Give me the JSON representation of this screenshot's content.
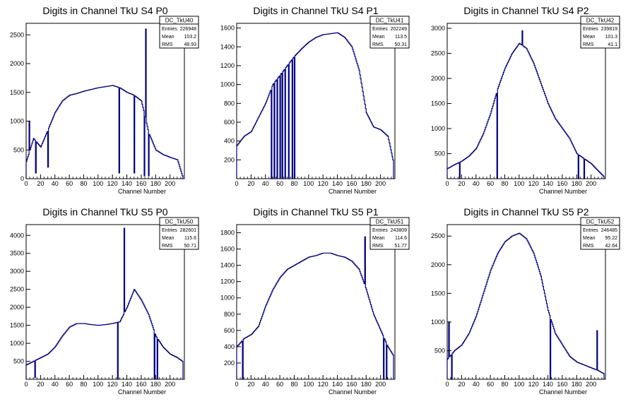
{
  "chart_data": [
    {
      "type": "histogram",
      "title": "Digits in Channel TkU S4 P0",
      "xlabel": "Channel Number",
      "xlim": [
        0,
        220
      ],
      "ylim": [
        0,
        2700
      ],
      "xticks": [
        0,
        20,
        40,
        60,
        80,
        100,
        120,
        140,
        160,
        180,
        200
      ],
      "yticks": [
        0,
        500,
        1000,
        1500,
        2000,
        2500
      ],
      "stats": {
        "name": "DC_TkU40",
        "entries_label": "Entries",
        "entries": "226948",
        "mean_label": "Mean",
        "mean": "103.2",
        "rms_label": "RMS",
        "rms": "48.93"
      },
      "x": [
        0,
        10,
        20,
        30,
        40,
        50,
        60,
        70,
        80,
        90,
        100,
        110,
        120,
        130,
        140,
        150,
        160,
        170,
        180,
        190,
        200,
        210,
        217
      ],
      "values": [
        300,
        700,
        550,
        850,
        1150,
        1350,
        1450,
        1480,
        1520,
        1550,
        1580,
        1600,
        1620,
        1580,
        1500,
        1450,
        1350,
        800,
        500,
        420,
        370,
        330,
        50
      ],
      "spikes": [
        [
          4,
          1000
        ],
        [
          13,
          100
        ],
        [
          30,
          200
        ],
        [
          129,
          100
        ],
        [
          150,
          100
        ],
        [
          164,
          50
        ],
        [
          166,
          2600
        ],
        [
          170,
          50
        ]
      ],
      "color": "#000080"
    },
    {
      "type": "histogram",
      "title": "Digits in Channel TkU S4 P1",
      "xlabel": "Channel Number",
      "xlim": [
        0,
        220
      ],
      "ylim": [
        0,
        1650
      ],
      "xticks": [
        0,
        20,
        40,
        60,
        80,
        100,
        120,
        140,
        160,
        180,
        200
      ],
      "yticks": [
        200,
        400,
        600,
        800,
        1000,
        1200,
        1400,
        1600
      ],
      "stats": {
        "name": "DC_TkU41",
        "entries_label": "Entries",
        "entries": "202249",
        "mean_label": "Mean",
        "mean": "113.5",
        "rms_label": "RMS",
        "rms": "50.31"
      },
      "x": [
        0,
        10,
        20,
        30,
        40,
        50,
        60,
        70,
        80,
        90,
        100,
        110,
        120,
        130,
        140,
        150,
        160,
        170,
        180,
        190,
        200,
        210,
        217
      ],
      "values": [
        350,
        450,
        500,
        650,
        800,
        1000,
        1100,
        1200,
        1300,
        1380,
        1450,
        1500,
        1530,
        1540,
        1550,
        1500,
        1400,
        1150,
        700,
        550,
        520,
        450,
        200
      ],
      "spikes": [
        [
          48,
          0
        ],
        [
          52,
          0
        ],
        [
          56,
          0
        ],
        [
          60,
          0
        ],
        [
          63,
          0
        ],
        [
          67,
          0
        ],
        [
          72,
          0
        ],
        [
          77,
          0
        ],
        [
          80,
          0
        ]
      ],
      "color": "#000080"
    },
    {
      "type": "histogram",
      "title": "Digits in Channel TkU S4 P2",
      "xlabel": "Channel Number",
      "xlim": [
        0,
        220
      ],
      "ylim": [
        0,
        3100
      ],
      "xticks": [
        0,
        20,
        40,
        60,
        80,
        100,
        120,
        140,
        160,
        180,
        200
      ],
      "yticks": [
        500,
        1000,
        1500,
        2000,
        2500,
        3000
      ],
      "stats": {
        "name": "DC_TkU42",
        "entries_label": "Entries",
        "entries": "239819",
        "mean_label": "Mean",
        "mean": "101.3",
        "rms_label": "RMS",
        "rms": "41.1"
      },
      "x": [
        0,
        10,
        20,
        30,
        40,
        50,
        60,
        70,
        80,
        90,
        100,
        110,
        120,
        130,
        140,
        150,
        160,
        170,
        180,
        190,
        200,
        210,
        217
      ],
      "values": [
        200,
        280,
        350,
        450,
        600,
        900,
        1300,
        1800,
        2200,
        2500,
        2700,
        2600,
        2300,
        1900,
        1500,
        1200,
        1000,
        800,
        500,
        400,
        300,
        150,
        50
      ],
      "spikes": [
        [
          17,
          0
        ],
        [
          69,
          0
        ],
        [
          104,
          2950
        ],
        [
          182,
          0
        ],
        [
          190,
          0
        ]
      ],
      "color": "#000080"
    },
    {
      "type": "histogram",
      "title": "Digits in Channel TkU S5 P0",
      "xlabel": "Channel Number",
      "xlim": [
        0,
        220
      ],
      "ylim": [
        0,
        4300
      ],
      "xticks": [
        0,
        20,
        40,
        60,
        80,
        100,
        120,
        140,
        160,
        180,
        200
      ],
      "yticks": [
        500,
        1000,
        1500,
        2000,
        2500,
        3000,
        3500,
        4000
      ],
      "stats": {
        "name": "DC_TkU50",
        "entries_label": "Entries",
        "entries": "282601",
        "mean_label": "Mean",
        "mean": "115.6",
        "rms_label": "RMS",
        "rms": "50.71"
      },
      "x": [
        0,
        10,
        20,
        30,
        40,
        50,
        60,
        70,
        80,
        90,
        100,
        110,
        120,
        130,
        140,
        150,
        160,
        170,
        180,
        190,
        200,
        210,
        217
      ],
      "values": [
        400,
        500,
        600,
        700,
        900,
        1200,
        1450,
        1550,
        1550,
        1520,
        1500,
        1520,
        1550,
        1600,
        2000,
        2500,
        2200,
        1800,
        1200,
        900,
        700,
        600,
        500
      ],
      "spikes": [
        [
          12,
          50
        ],
        [
          127,
          0
        ],
        [
          136,
          4200
        ],
        [
          178,
          0
        ],
        [
          182,
          0
        ]
      ],
      "color": "#000080"
    },
    {
      "type": "histogram",
      "title": "Digits in Channel TkU S5 P1",
      "xlabel": "Channel Number",
      "xlim": [
        0,
        220
      ],
      "ylim": [
        0,
        1900
      ],
      "xticks": [
        0,
        20,
        40,
        60,
        80,
        100,
        120,
        140,
        160,
        180,
        200
      ],
      "yticks": [
        200,
        400,
        600,
        800,
        1000,
        1200,
        1400,
        1600,
        1800
      ],
      "stats": {
        "name": "DC_TkU51",
        "entries_label": "Entries",
        "entries": "243809",
        "mean_label": "Mean",
        "mean": "114.6",
        "rms_label": "RMS",
        "rms": "51.77"
      },
      "x": [
        0,
        10,
        20,
        30,
        40,
        50,
        60,
        70,
        80,
        90,
        100,
        110,
        120,
        130,
        140,
        150,
        160,
        170,
        180,
        190,
        200,
        210,
        217
      ],
      "values": [
        400,
        500,
        550,
        650,
        900,
        1100,
        1250,
        1350,
        1400,
        1450,
        1500,
        1520,
        1550,
        1550,
        1520,
        1500,
        1450,
        1350,
        1100,
        800,
        600,
        400,
        300
      ],
      "spikes": [
        [
          8,
          0
        ],
        [
          178,
          1750
        ],
        [
          204,
          0
        ],
        [
          208,
          0
        ]
      ],
      "color": "#000080"
    },
    {
      "type": "histogram",
      "title": "Digits in Channel TkU S5 P2",
      "xlabel": "Channel Number",
      "xlim": [
        0,
        220
      ],
      "ylim": [
        0,
        2700
      ],
      "xticks": [
        0,
        20,
        40,
        60,
        80,
        100,
        120,
        140,
        160,
        180,
        200
      ],
      "yticks": [
        500,
        1000,
        1500,
        2000,
        2500
      ],
      "stats": {
        "name": "DC_TkU52",
        "entries_label": "Entries",
        "entries": "246485",
        "mean_label": "Mean",
        "mean": "95.22",
        "rms_label": "RMS",
        "rms": "42.64"
      },
      "x": [
        0,
        10,
        20,
        30,
        40,
        50,
        60,
        70,
        80,
        90,
        100,
        110,
        120,
        130,
        140,
        150,
        160,
        170,
        180,
        190,
        200,
        210,
        217
      ],
      "values": [
        350,
        500,
        600,
        800,
        1100,
        1500,
        1900,
        2200,
        2400,
        2500,
        2550,
        2450,
        2200,
        1800,
        1200,
        800,
        600,
        400,
        300,
        250,
        200,
        150,
        100
      ],
      "spikes": [
        [
          2,
          1000
        ],
        [
          6,
          0
        ],
        [
          143,
          0
        ],
        [
          208,
          850
        ]
      ],
      "color": "#000080"
    }
  ]
}
